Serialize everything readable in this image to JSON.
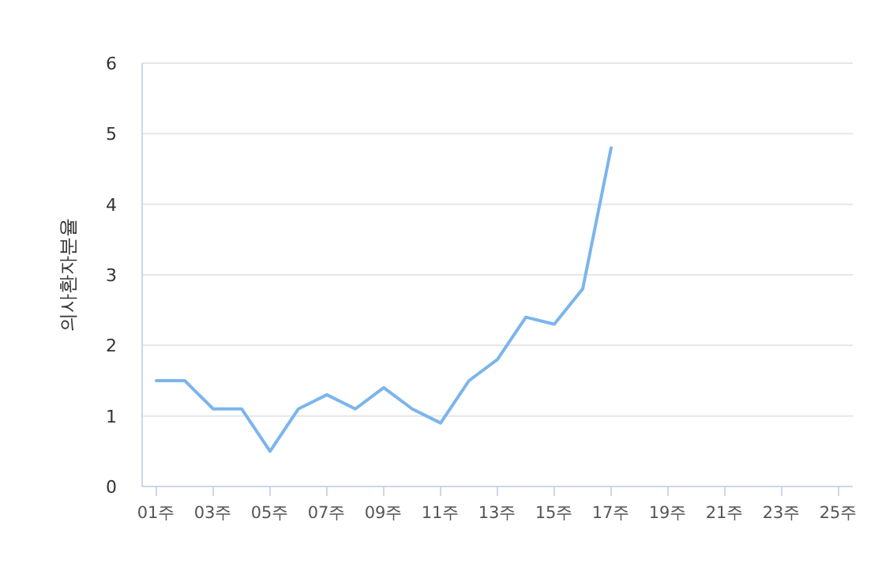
{
  "chart_data": {
    "type": "line",
    "ylabel": "의사환자분율",
    "categories": [
      "01주",
      null,
      "03주",
      null,
      "05주",
      null,
      "07주",
      null,
      "09주",
      null,
      "11주",
      null,
      "13주",
      null,
      "15주",
      null,
      "17주",
      null,
      "19주",
      null,
      "21주",
      null,
      "23주",
      null,
      "25주"
    ],
    "values": [
      1.5,
      1.5,
      1.1,
      1.1,
      0.5,
      1.1,
      1.3,
      1.1,
      1.4,
      1.1,
      0.9,
      1.5,
      1.8,
      2.4,
      2.3,
      2.8,
      4.8,
      null,
      null,
      null,
      null,
      null,
      null,
      null,
      null
    ],
    "color": "#7cb5ec",
    "ylim": [
      0,
      6
    ],
    "yticks": [
      0,
      1,
      2,
      3,
      4,
      5,
      6
    ],
    "grid": "y"
  }
}
